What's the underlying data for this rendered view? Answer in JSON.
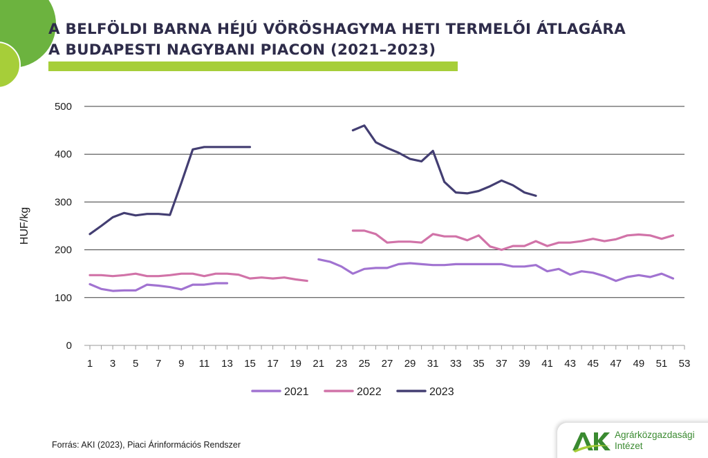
{
  "title": {
    "line1": "A BELFÖLDI BARNA HÉJÚ VÖRÖSHAGYMA HETI TERMELŐI ÁTLAGÁRA",
    "line2": "A BUDAPESTI NAGYBANI PIACON (2021–2023)"
  },
  "source": "Forrás: AKI (2023), Piaci Árinformációs Rendszer",
  "logo": {
    "mark": "AKI",
    "line1": "Agrárközgazdasági",
    "line2": "Intézet"
  },
  "colors": {
    "title": "#2e2c4a",
    "accent_green": "#a6ce39",
    "dark_green": "#6cb33f",
    "s2021": "#a173d1",
    "s2022": "#d173a8",
    "s2023": "#433e72"
  },
  "chart_data": {
    "type": "line",
    "title": "A BELFÖLDI BARNA HÉJÚ VÖRÖSHAGYMA HETI TERMELŐI ÁTLAGÁRA A BUDAPESTI NAGYBANI PIACON (2021–2023)",
    "xlabel": "",
    "ylabel": "HUF/kg",
    "xlim": [
      1,
      53
    ],
    "ylim": [
      0,
      500
    ],
    "x_ticks": [
      1,
      3,
      5,
      7,
      9,
      11,
      13,
      15,
      17,
      19,
      21,
      23,
      25,
      27,
      29,
      31,
      33,
      35,
      37,
      39,
      41,
      43,
      45,
      47,
      49,
      51,
      53
    ],
    "y_ticks": [
      0,
      100,
      200,
      300,
      400,
      500
    ],
    "grid": "horizontal",
    "legend_position": "bottom",
    "series": [
      {
        "name": "2021",
        "color": "#a173d1",
        "points": [
          [
            1,
            128
          ],
          [
            2,
            118
          ],
          [
            3,
            114
          ],
          [
            4,
            115
          ],
          [
            5,
            115
          ],
          [
            6,
            127
          ],
          [
            7,
            125
          ],
          [
            8,
            122
          ],
          [
            9,
            117
          ],
          [
            10,
            127
          ],
          [
            11,
            127
          ],
          [
            12,
            130
          ],
          [
            13,
            130
          ],
          [
            21,
            180
          ],
          [
            22,
            175
          ],
          [
            23,
            165
          ],
          [
            24,
            150
          ],
          [
            25,
            160
          ],
          [
            26,
            162
          ],
          [
            27,
            162
          ],
          [
            28,
            170
          ],
          [
            29,
            172
          ],
          [
            30,
            170
          ],
          [
            31,
            168
          ],
          [
            32,
            168
          ],
          [
            33,
            170
          ],
          [
            34,
            170
          ],
          [
            35,
            170
          ],
          [
            36,
            170
          ],
          [
            37,
            170
          ],
          [
            38,
            165
          ],
          [
            39,
            165
          ],
          [
            40,
            168
          ],
          [
            41,
            155
          ],
          [
            42,
            160
          ],
          [
            43,
            148
          ],
          [
            44,
            155
          ],
          [
            45,
            152
          ],
          [
            46,
            145
          ],
          [
            47,
            135
          ],
          [
            48,
            143
          ],
          [
            49,
            147
          ],
          [
            50,
            143
          ],
          [
            51,
            150
          ],
          [
            52,
            140
          ]
        ]
      },
      {
        "name": "2022",
        "color": "#d173a8",
        "points": [
          [
            1,
            147
          ],
          [
            2,
            147
          ],
          [
            3,
            145
          ],
          [
            4,
            147
          ],
          [
            5,
            150
          ],
          [
            6,
            145
          ],
          [
            7,
            145
          ],
          [
            8,
            147
          ],
          [
            9,
            150
          ],
          [
            10,
            150
          ],
          [
            11,
            145
          ],
          [
            12,
            150
          ],
          [
            13,
            150
          ],
          [
            14,
            148
          ],
          [
            15,
            140
          ],
          [
            16,
            142
          ],
          [
            17,
            140
          ],
          [
            18,
            142
          ],
          [
            19,
            138
          ],
          [
            20,
            135
          ],
          [
            24,
            240
          ],
          [
            25,
            240
          ],
          [
            26,
            233
          ],
          [
            27,
            215
          ],
          [
            28,
            217
          ],
          [
            29,
            217
          ],
          [
            30,
            215
          ],
          [
            31,
            233
          ],
          [
            32,
            228
          ],
          [
            33,
            228
          ],
          [
            34,
            220
          ],
          [
            35,
            230
          ],
          [
            36,
            207
          ],
          [
            37,
            200
          ],
          [
            38,
            208
          ],
          [
            39,
            208
          ],
          [
            40,
            218
          ],
          [
            41,
            208
          ],
          [
            42,
            215
          ],
          [
            43,
            215
          ],
          [
            44,
            218
          ],
          [
            45,
            223
          ],
          [
            46,
            218
          ],
          [
            47,
            222
          ],
          [
            48,
            230
          ],
          [
            49,
            232
          ],
          [
            50,
            230
          ],
          [
            51,
            223
          ],
          [
            52,
            230
          ]
        ]
      },
      {
        "name": "2023",
        "color": "#433e72",
        "points": [
          [
            1,
            233
          ],
          [
            2,
            250
          ],
          [
            3,
            268
          ],
          [
            4,
            277
          ],
          [
            5,
            272
          ],
          [
            6,
            275
          ],
          [
            7,
            275
          ],
          [
            8,
            273
          ],
          [
            9,
            340
          ],
          [
            10,
            410
          ],
          [
            11,
            415
          ],
          [
            12,
            415
          ],
          [
            13,
            415
          ],
          [
            14,
            415
          ],
          [
            15,
            415
          ],
          [
            24,
            450
          ],
          [
            25,
            460
          ],
          [
            26,
            425
          ],
          [
            27,
            413
          ],
          [
            28,
            403
          ],
          [
            29,
            390
          ],
          [
            30,
            385
          ],
          [
            31,
            407
          ],
          [
            32,
            342
          ],
          [
            33,
            320
          ],
          [
            34,
            318
          ],
          [
            35,
            323
          ],
          [
            36,
            333
          ],
          [
            37,
            345
          ],
          [
            38,
            335
          ],
          [
            39,
            320
          ],
          [
            40,
            313
          ]
        ]
      }
    ]
  }
}
